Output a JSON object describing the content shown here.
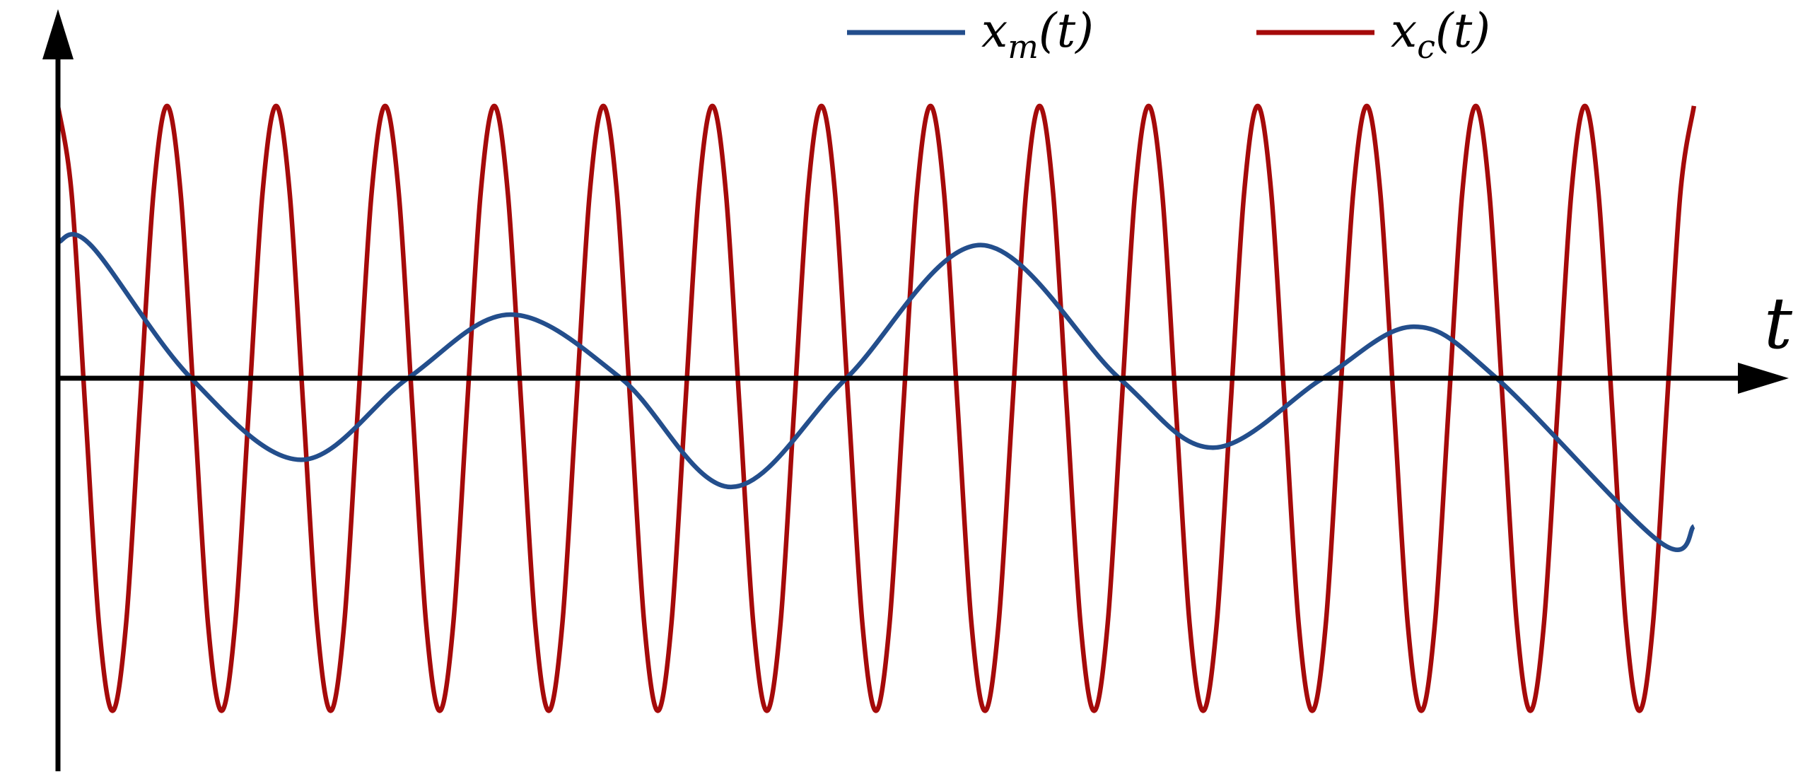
{
  "chart_data": {
    "type": "line",
    "axis_label_x": "t",
    "legend": "top",
    "xlim": [
      0,
      15.85
    ],
    "ylim": [
      -1.3,
      1.22
    ],
    "series": [
      {
        "name": "xm(t)",
        "color": "#234e8c",
        "x": [
          0,
          0.3,
          1.22,
          2.23,
          3.21,
          4.15,
          5.16,
          6.17,
          7.23,
          8.46,
          9.73,
          10.59,
          11.6,
          12.43,
          13.19,
          14.68,
          15
        ],
        "values": [
          0.45,
          0.44,
          0,
          -0.27,
          0,
          0.21,
          0,
          -0.36,
          0,
          0.44,
          0,
          -0.23,
          0,
          0.17,
          0,
          -0.54,
          -0.49
        ]
      },
      {
        "name": "xc(t)",
        "color": "#a50a0a",
        "x": [
          0,
          0.125,
          0.25,
          0.375,
          0.5,
          0.625,
          0.75,
          0.875,
          1,
          1.125,
          1.25,
          1.375,
          1.5,
          1.625,
          1.75,
          1.875,
          2,
          2.125,
          2.25,
          2.375,
          2.5,
          2.625,
          2.75,
          2.875,
          3,
          3.125,
          3.25,
          3.375,
          3.5,
          3.625,
          3.75,
          3.875,
          4,
          4.125,
          4.25,
          4.375,
          4.5,
          4.625,
          4.75,
          4.875,
          5,
          5.125,
          5.25,
          5.375,
          5.5,
          5.625,
          5.75,
          5.875,
          6,
          6.125,
          6.25,
          6.375,
          6.5,
          6.625,
          6.75,
          6.875,
          7,
          7.125,
          7.25,
          7.375,
          7.5,
          7.625,
          7.75,
          7.875,
          8,
          8.125,
          8.25,
          8.375,
          8.5,
          8.625,
          8.75,
          8.875,
          9,
          9.125,
          9.25,
          9.375,
          9.5,
          9.625,
          9.75,
          9.875,
          10,
          10.125,
          10.25,
          10.375,
          10.5,
          10.625,
          10.75,
          10.875,
          11,
          11.125,
          11.25,
          11.375,
          11.5,
          11.625,
          11.75,
          11.875,
          12,
          12.125,
          12.25,
          12.375,
          12.5,
          12.625,
          12.75,
          12.875,
          13,
          13.125,
          13.25,
          13.375,
          13.5,
          13.625,
          13.75,
          13.875,
          14,
          14.125,
          14.25,
          14.375,
          14.5,
          14.625,
          14.75,
          14.875,
          15
        ],
        "values": [
          0.9,
          0.61,
          -0.1,
          -0.81,
          -1.1,
          -0.81,
          -0.1,
          0.61,
          0.9,
          0.61,
          -0.1,
          -0.81,
          -1.1,
          -0.81,
          -0.1,
          0.61,
          0.9,
          0.61,
          -0.1,
          -0.81,
          -1.1,
          -0.81,
          -0.1,
          0.61,
          0.9,
          0.61,
          -0.1,
          -0.81,
          -1.1,
          -0.81,
          -0.1,
          0.61,
          0.9,
          0.61,
          -0.1,
          -0.81,
          -1.1,
          -0.81,
          -0.1,
          0.61,
          0.9,
          0.61,
          -0.1,
          -0.81,
          -1.1,
          -0.81,
          -0.1,
          0.61,
          0.9,
          0.61,
          -0.1,
          -0.81,
          -1.1,
          -0.81,
          -0.1,
          0.61,
          0.9,
          0.61,
          -0.1,
          -0.81,
          -1.1,
          -0.81,
          -0.1,
          0.61,
          0.9,
          0.61,
          -0.1,
          -0.81,
          -1.1,
          -0.81,
          -0.1,
          0.61,
          0.9,
          0.61,
          -0.1,
          -0.81,
          -1.1,
          -0.81,
          -0.1,
          0.61,
          0.9,
          0.61,
          -0.1,
          -0.81,
          -1.1,
          -0.81,
          -0.1,
          0.61,
          0.9,
          0.61,
          -0.1,
          -0.81,
          -1.1,
          -0.81,
          -0.1,
          0.61,
          0.9,
          0.61,
          -0.1,
          -0.81,
          -1.1,
          -0.81,
          -0.1,
          0.61,
          0.9,
          0.61,
          -0.1,
          -0.81,
          -1.1,
          -0.81,
          -0.1,
          0.61,
          0.9,
          0.61,
          -0.1,
          -0.81,
          -1.1,
          -0.81,
          -0.1,
          0.61,
          0.9
        ]
      }
    ]
  }
}
